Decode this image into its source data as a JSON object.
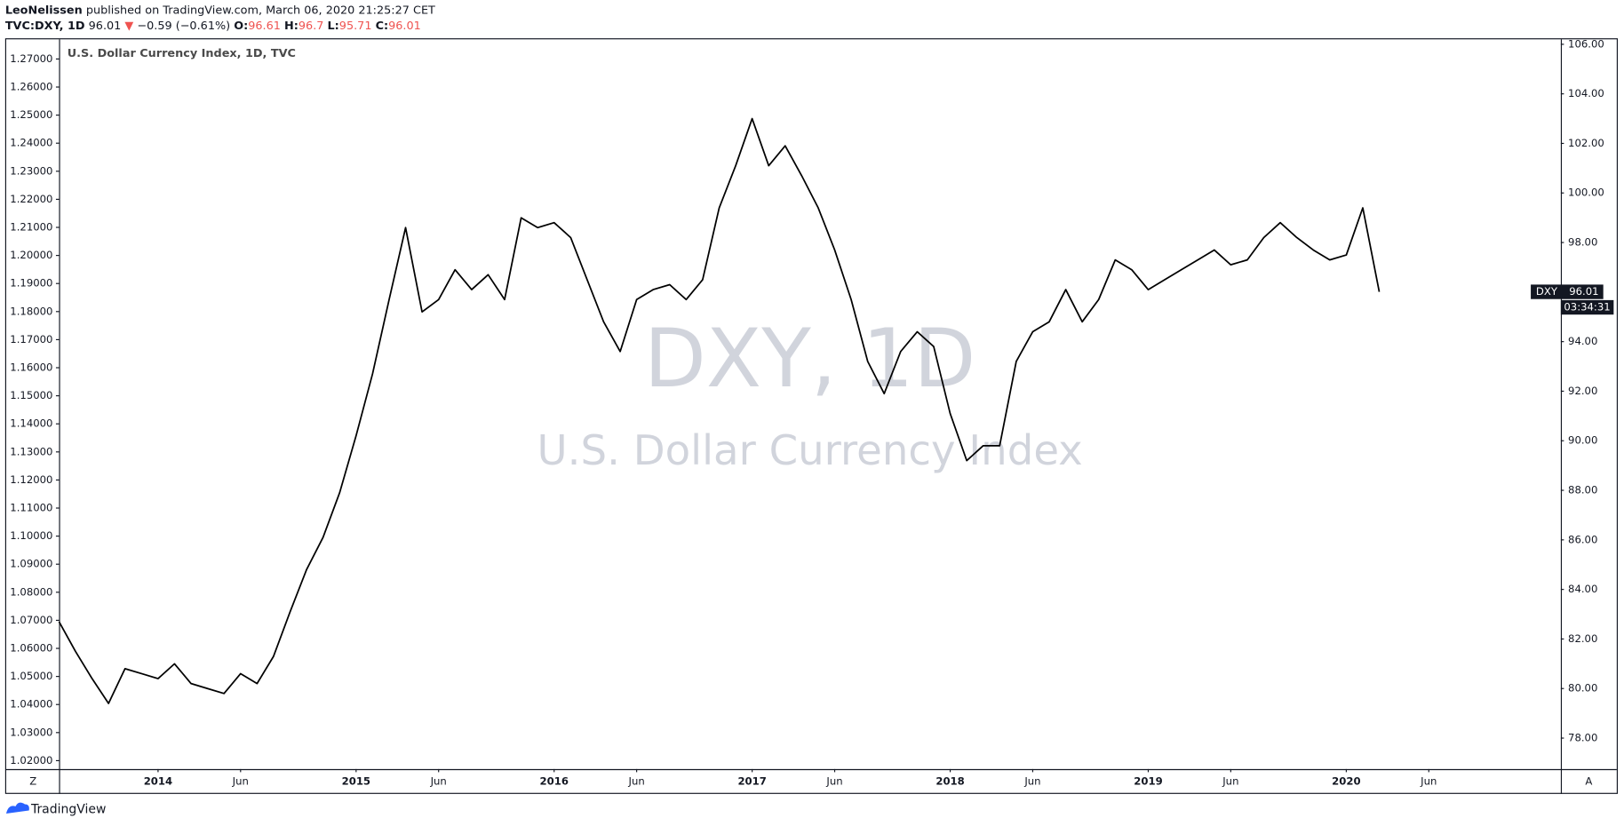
{
  "header": {
    "author": "LeoNelissen",
    "published": "published on TradingView.com, March 06, 2020 21:25:27 CET",
    "symbol": "TVC:DXY, 1D",
    "last": 96.01,
    "change_arrow": "▼",
    "change": "−0.59 (−0.61%)",
    "open_label": "O:",
    "open": 96.61,
    "high_label": "H:",
    "high": 96.7,
    "low_label": "L:",
    "low": 95.71,
    "close_label": "C:",
    "close": 96.01
  },
  "chart_data": {
    "type": "line",
    "title": "U.S. Dollar Currency Index, 1D, TVC",
    "watermark": "DXY, 1D",
    "watermark_subtitle": "U.S. Dollar Currency Index",
    "price_label": "DXY",
    "countdown": "03:34:31",
    "x": [
      "2013-07",
      "2013-08",
      "2013-09",
      "2013-10",
      "2013-11",
      "2013-12",
      "2014-01",
      "2014-02",
      "2014-03",
      "2014-04",
      "2014-05",
      "2014-06",
      "2014-07",
      "2014-08",
      "2014-09",
      "2014-10",
      "2014-11",
      "2014-12",
      "2015-01",
      "2015-02",
      "2015-03",
      "2015-04",
      "2015-05",
      "2015-06",
      "2015-07",
      "2015-08",
      "2015-09",
      "2015-10",
      "2015-11",
      "2015-12",
      "2016-01",
      "2016-02",
      "2016-03",
      "2016-04",
      "2016-05",
      "2016-06",
      "2016-07",
      "2016-08",
      "2016-09",
      "2016-10",
      "2016-11",
      "2016-12",
      "2017-01",
      "2017-02",
      "2017-03",
      "2017-04",
      "2017-05",
      "2017-06",
      "2017-07",
      "2017-08",
      "2017-09",
      "2017-10",
      "2017-11",
      "2017-12",
      "2018-01",
      "2018-02",
      "2018-03",
      "2018-04",
      "2018-05",
      "2018-06",
      "2018-07",
      "2018-08",
      "2018-09",
      "2018-10",
      "2018-11",
      "2018-12",
      "2019-01",
      "2019-02",
      "2019-03",
      "2019-04",
      "2019-05",
      "2019-06",
      "2019-07",
      "2019-08",
      "2019-09",
      "2019-10",
      "2019-11",
      "2019-12",
      "2020-01",
      "2020-02",
      "2020-03"
    ],
    "series": [
      {
        "name": "DXY",
        "color": "#000000",
        "axis": "y2",
        "values": [
          82.7,
          81.5,
          80.4,
          79.4,
          80.8,
          80.6,
          80.4,
          81.0,
          80.2,
          80.0,
          79.8,
          80.6,
          80.2,
          81.3,
          83.1,
          84.8,
          86.1,
          87.9,
          90.2,
          92.7,
          95.7,
          98.6,
          95.2,
          95.7,
          96.9,
          96.1,
          96.7,
          95.7,
          99.0,
          98.6,
          98.8,
          98.2,
          96.5,
          94.8,
          93.6,
          95.7,
          96.1,
          96.3,
          95.7,
          96.5,
          99.4,
          101.1,
          103.0,
          101.1,
          101.9,
          100.7,
          99.4,
          97.7,
          95.7,
          93.2,
          91.9,
          93.6,
          94.4,
          93.8,
          91.1,
          89.2,
          89.8,
          89.8,
          93.2,
          94.4,
          94.8,
          96.1,
          94.8,
          95.7,
          97.3,
          96.9,
          96.1,
          96.5,
          96.9,
          97.3,
          97.7,
          97.1,
          97.3,
          98.2,
          98.8,
          98.2,
          97.7,
          97.3,
          97.5,
          99.4,
          96.01
        ]
      }
    ],
    "xlim": [
      "2013-07",
      "2021-02"
    ],
    "xticks": [
      {
        "value": "2014-01",
        "label": "2014"
      },
      {
        "value": "2014-06",
        "label": "Jun"
      },
      {
        "value": "2015-01",
        "label": "2015"
      },
      {
        "value": "2015-06",
        "label": "Jun"
      },
      {
        "value": "2016-01",
        "label": "2016"
      },
      {
        "value": "2016-06",
        "label": "Jun"
      },
      {
        "value": "2017-01",
        "label": "2017"
      },
      {
        "value": "2017-06",
        "label": "Jun"
      },
      {
        "value": "2018-01",
        "label": "2018"
      },
      {
        "value": "2018-06",
        "label": "Jun"
      },
      {
        "value": "2019-01",
        "label": "2019"
      },
      {
        "value": "2019-06",
        "label": "Jun"
      },
      {
        "value": "2020-01",
        "label": "2020"
      },
      {
        "value": "2020-06",
        "label": "Jun"
      }
    ],
    "ylim": [
      1.017,
      1.277
    ],
    "yticks": [
      {
        "value": 1.02,
        "label": "1.02000"
      },
      {
        "value": 1.03,
        "label": "1.03000"
      },
      {
        "value": 1.04,
        "label": "1.04000"
      },
      {
        "value": 1.05,
        "label": "1.05000"
      },
      {
        "value": 1.06,
        "label": "1.06000"
      },
      {
        "value": 1.07,
        "label": "1.07000"
      },
      {
        "value": 1.08,
        "label": "1.08000"
      },
      {
        "value": 1.09,
        "label": "1.09000"
      },
      {
        "value": 1.1,
        "label": "1.10000"
      },
      {
        "value": 1.11,
        "label": "1.11000"
      },
      {
        "value": 1.12,
        "label": "1.12000"
      },
      {
        "value": 1.13,
        "label": "1.13000"
      },
      {
        "value": 1.14,
        "label": "1.14000"
      },
      {
        "value": 1.15,
        "label": "1.15000"
      },
      {
        "value": 1.16,
        "label": "1.16000"
      },
      {
        "value": 1.17,
        "label": "1.17000"
      },
      {
        "value": 1.18,
        "label": "1.18000"
      },
      {
        "value": 1.19,
        "label": "1.19000"
      },
      {
        "value": 1.2,
        "label": "1.20000"
      },
      {
        "value": 1.21,
        "label": "1.21000"
      },
      {
        "value": 1.22,
        "label": "1.22000"
      },
      {
        "value": 1.23,
        "label": "1.23000"
      },
      {
        "value": 1.24,
        "label": "1.24000"
      },
      {
        "value": 1.25,
        "label": "1.25000"
      },
      {
        "value": 1.26,
        "label": "1.26000"
      },
      {
        "value": 1.27,
        "label": "1.27000"
      }
    ],
    "y2lim": [
      76.75,
      106.2
    ],
    "y2ticks": [
      {
        "value": 78,
        "label": "78.00"
      },
      {
        "value": 80,
        "label": "80.00"
      },
      {
        "value": 82,
        "label": "82.00"
      },
      {
        "value": 84,
        "label": "84.00"
      },
      {
        "value": 86,
        "label": "86.00"
      },
      {
        "value": 88,
        "label": "88.00"
      },
      {
        "value": 90,
        "label": "90.00"
      },
      {
        "value": 92,
        "label": "92.00"
      },
      {
        "value": 94,
        "label": "94.00"
      },
      {
        "value": 96,
        "label": "96.00"
      },
      {
        "value": 98,
        "label": "98.00"
      },
      {
        "value": 100,
        "label": "100.00"
      },
      {
        "value": 102,
        "label": "102.00"
      },
      {
        "value": 104,
        "label": "104.00"
      },
      {
        "value": 106,
        "label": "106.00"
      }
    ],
    "grid": false,
    "corner_left": "Z",
    "corner_right": "A"
  },
  "footer": {
    "brand": "TradingView"
  }
}
